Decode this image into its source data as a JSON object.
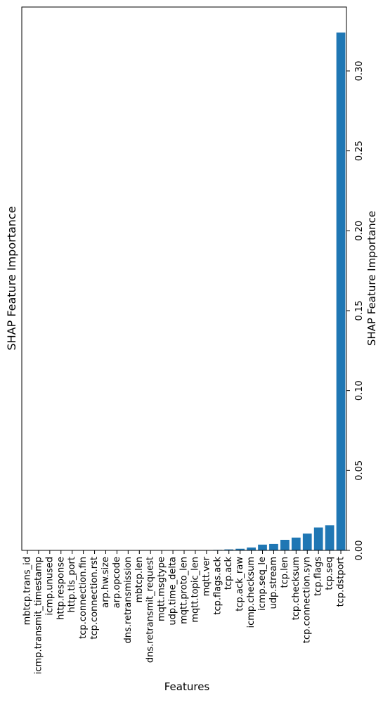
{
  "chart_data": {
    "type": "bar",
    "orientation": "rotated",
    "title": "SHAP Feature Importance",
    "xlabel": "Features",
    "ylabel": "SHAP Feature Importance",
    "categories": [
      "mbtcp.trans_id",
      "icmp.transmit_timestamp",
      "icmp.unused",
      "http.response",
      "http.tls_port",
      "tcp.connection.fin",
      "tcp.connection.rst",
      "arp.hw.size",
      "arp.opcode",
      "dns.retransmission",
      "mbtcp.len",
      "dns.retransmit_request",
      "mqtt.msgtype",
      "udp.time_delta",
      "mqtt.proto_len",
      "mqtt.topic_len",
      "mqtt.ver",
      "tcp.flags.ack",
      "tcp.ack",
      "tcp.ack_raw",
      "icmp.checksum",
      "icmp.seq_le",
      "udp.stream",
      "tcp.len",
      "tcp.checksum",
      "tcp.connection.syn",
      "tcp.flags",
      "tcp.seq",
      "tcp.dstport"
    ],
    "values": [
      0.0,
      0.0,
      0.0,
      0.0,
      0.0,
      0.0,
      0.0,
      0.0,
      0.0,
      0.0,
      0.0,
      0.0,
      0.0,
      0.0,
      0.0,
      0.0,
      0.0,
      0.0003,
      0.0006,
      0.001,
      0.0018,
      0.0036,
      0.004,
      0.0066,
      0.008,
      0.0105,
      0.0143,
      0.0157,
      0.324
    ],
    "yticks": [
      "0.00",
      "0.05",
      "0.10",
      "0.15",
      "0.20",
      "0.25",
      "0.30"
    ],
    "ylim": [
      0,
      0.34
    ],
    "bar_color": "#1f77b4",
    "grid": false,
    "legend": "none"
  }
}
